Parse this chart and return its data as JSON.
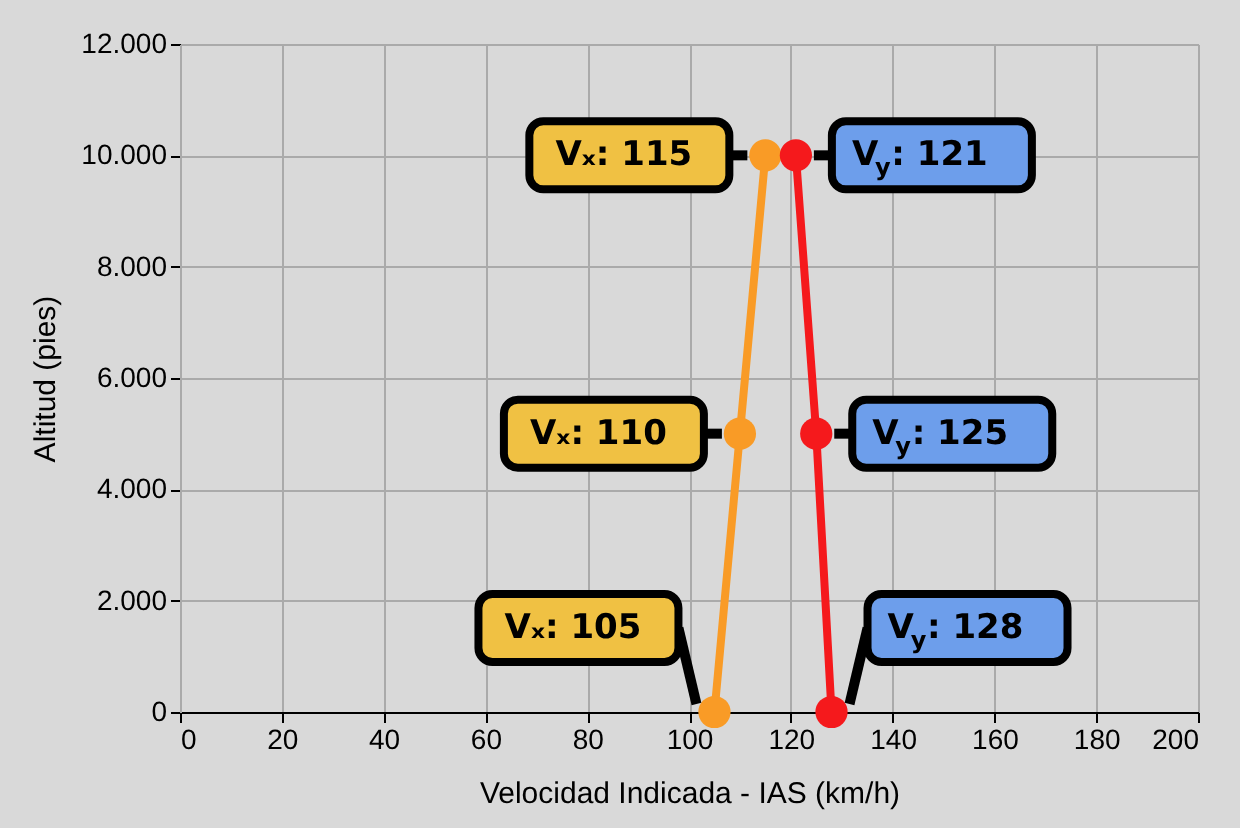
{
  "chart_data": {
    "type": "line",
    "xlabel": "Velocidad Indicada - IAS (km/h)",
    "ylabel": "Altitud (pies)",
    "xlim": [
      0,
      200
    ],
    "xticks": [
      0,
      20,
      40,
      60,
      80,
      100,
      120,
      140,
      160,
      180,
      200
    ],
    "ylim": [
      0,
      12000
    ],
    "yticks": [
      0,
      {
        "value": 2000,
        "label": "2.000"
      },
      {
        "value": 4000,
        "label": "4.000"
      },
      {
        "value": 6000,
        "label": "6.000"
      },
      {
        "value": 8000,
        "label": "8.000"
      },
      {
        "value": 10000,
        "label": "10.000"
      },
      {
        "value": 12000,
        "label": "12.000"
      }
    ],
    "grid": true,
    "marker": "circle",
    "line_style": "solid",
    "series": [
      {
        "color": "#f99b26",
        "x": [
          105,
          110,
          115
        ],
        "values": [
          0,
          5000,
          10000
        ]
      },
      {
        "color": "#f5191c",
        "x": [
          128,
          125,
          121
        ],
        "values": [
          0,
          5000,
          10000
        ]
      }
    ],
    "annotations": [
      {
        "text": "Vₓ: 115",
        "x": 115,
        "y": 10000
      },
      {
        "text": "Vₓ: 110",
        "x": 110,
        "y": 5000
      },
      {
        "text": "Vₓ: 105",
        "x": 105,
        "y": 0
      },
      {
        "text": "V$_{y}$: 121",
        "x": 121,
        "y": 10000
      },
      {
        "text": "V$_{y}$: 125",
        "x": 125,
        "y": 5000
      },
      {
        "text": "V$_{y}$: 128",
        "x": 128,
        "y": 0
      }
    ]
  }
}
